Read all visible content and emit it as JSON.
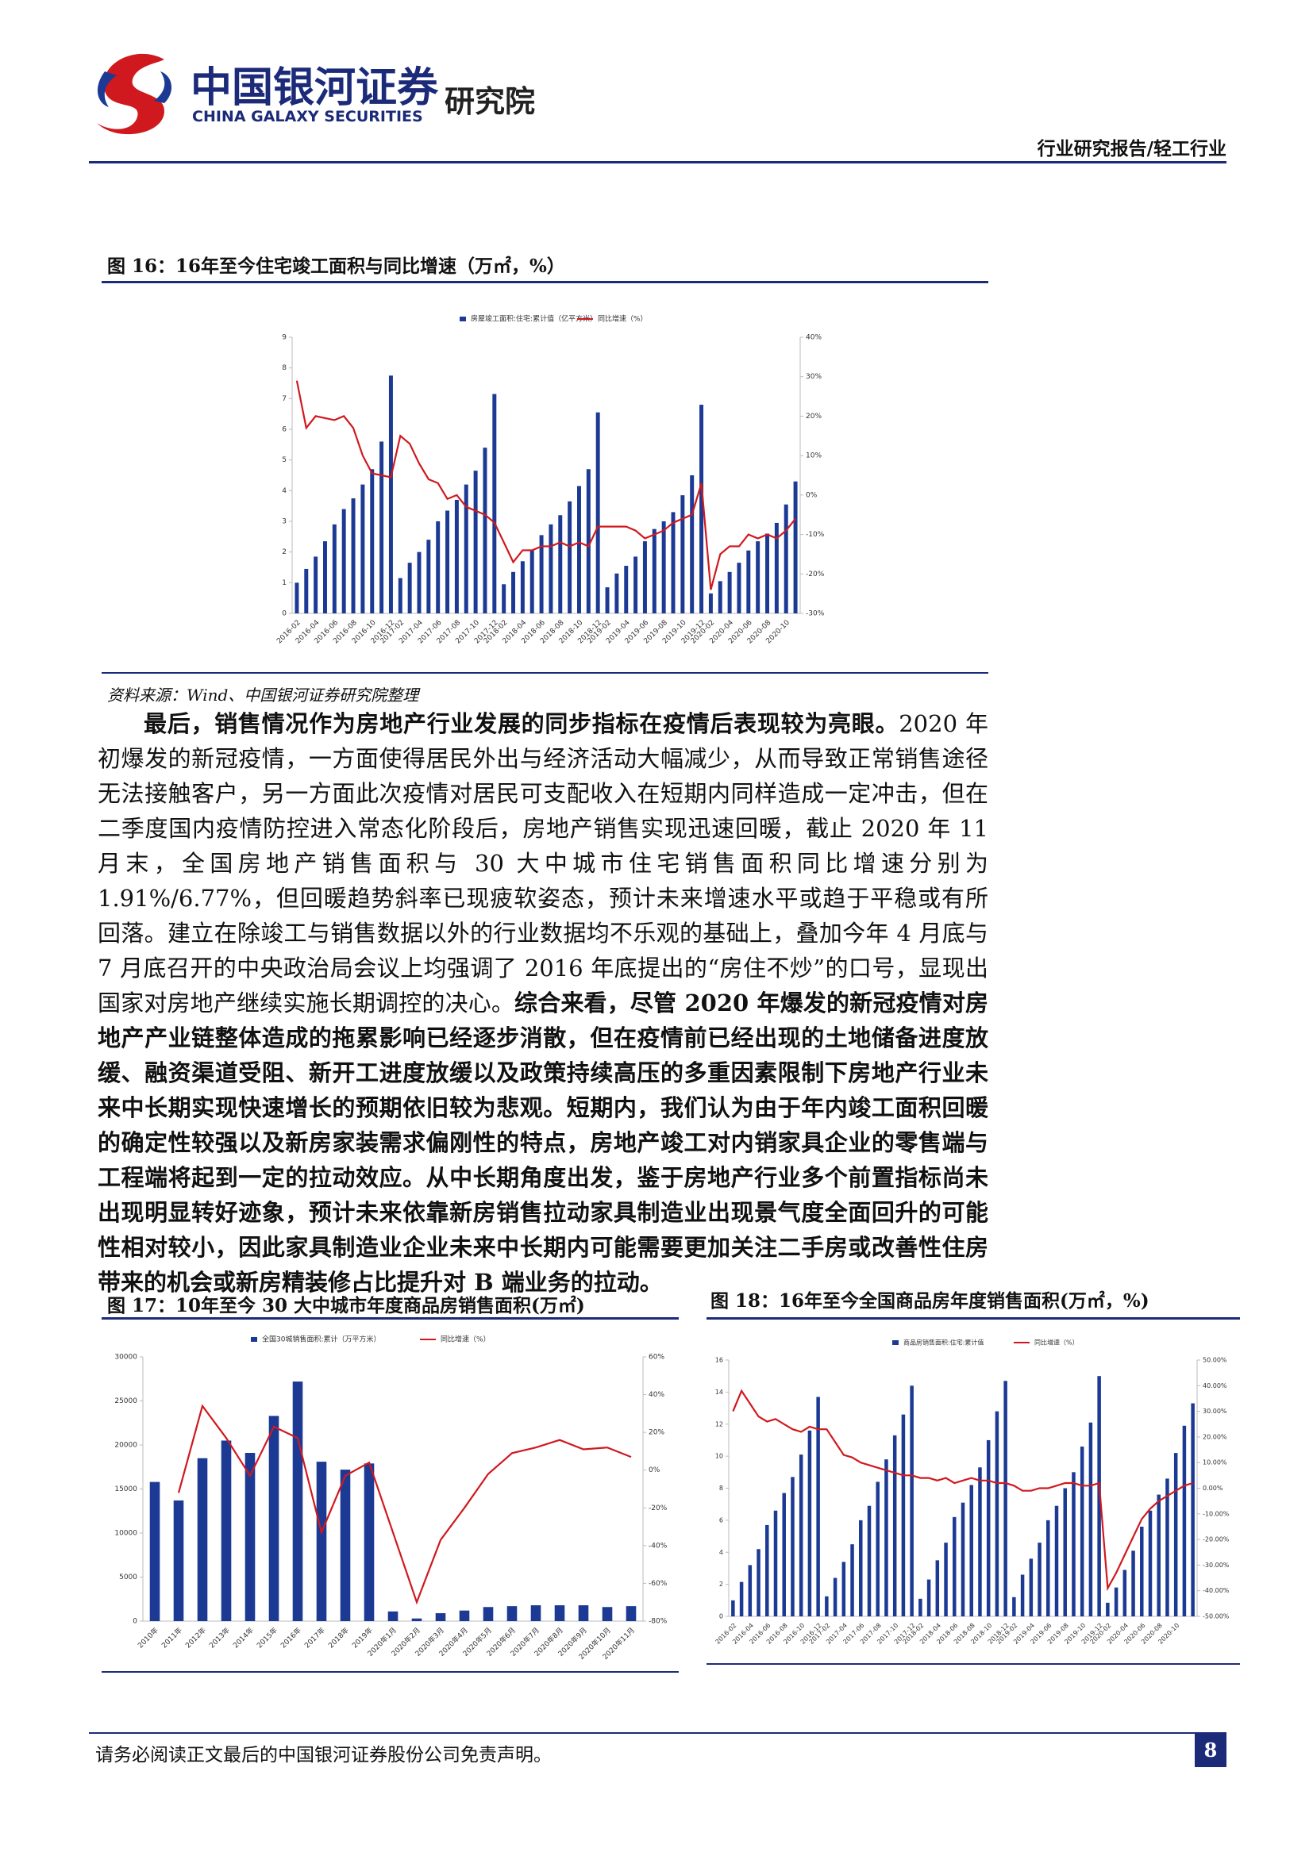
{
  "header": {
    "logo_cn": "中国银河证券",
    "logo_en": "CHINA GALAXY SECURITIES",
    "institute": "研究院",
    "category": "行业研究报告/轻工行业"
  },
  "chart_data": [
    {
      "type": "bar_line",
      "title": "图 16：16年至今住宅竣工面积与同比增速（万㎡，%）",
      "categories": [
        "2016-02",
        null,
        "2016-04",
        null,
        "2016-06",
        null,
        "2016-08",
        null,
        "2016-10",
        null,
        "2016-12",
        "2017-02",
        null,
        "2017-04",
        null,
        "2017-06",
        null,
        "2017-08",
        null,
        "2017-10",
        null,
        "2017-12",
        "2018-02",
        null,
        "2018-04",
        null,
        "2018-06",
        null,
        "2018-08",
        null,
        "2018-10",
        null,
        "2018-12",
        "2019-02",
        null,
        "2019-04",
        null,
        "2019-06",
        null,
        "2019-08",
        null,
        "2019-10",
        null,
        "2019-12",
        "2020-02",
        null,
        "2020-04",
        null,
        "2020-06",
        null,
        "2020-08",
        null,
        "2020-10",
        null
      ],
      "series": [
        {
          "name": "房屋竣工面积:住宅:累计值（亿平方米）",
          "color": "#1c3a94",
          "kind": "bar",
          "values": [
            1.0,
            1.45,
            1.85,
            2.35,
            2.9,
            3.4,
            3.75,
            4.2,
            4.7,
            5.6,
            7.75,
            1.15,
            1.65,
            2.0,
            2.4,
            3.0,
            3.35,
            3.7,
            4.2,
            4.65,
            5.4,
            7.15,
            0.95,
            1.35,
            1.7,
            2.05,
            2.55,
            2.9,
            3.2,
            3.65,
            4.15,
            4.7,
            6.55,
            0.85,
            1.3,
            1.55,
            1.85,
            2.35,
            2.75,
            3.0,
            3.3,
            3.85,
            4.5,
            6.8,
            0.65,
            1.05,
            1.35,
            1.65,
            2.05,
            2.35,
            2.6,
            2.95,
            3.55,
            4.3
          ]
        },
        {
          "name": "同比增速（%）",
          "color": "#d0191e",
          "kind": "line",
          "axis": "y2",
          "values": [
            29,
            17,
            20,
            19.5,
            19,
            20,
            17,
            10,
            5.5,
            5,
            4.5,
            15,
            13,
            8,
            4,
            3,
            -1,
            0,
            -3,
            -4,
            -5,
            -7,
            -12,
            -17,
            -14,
            -14,
            -13,
            -13,
            -12,
            -13,
            -12,
            -13,
            -8,
            -8,
            -8,
            -8,
            -9,
            -11,
            -10,
            -9,
            -7,
            -6,
            -5,
            3,
            -24,
            -15,
            -13,
            -13,
            -10,
            -11,
            -10,
            -11,
            -9,
            -6
          ]
        }
      ],
      "ylim": [
        0,
        9
      ],
      "yticks": [
        0,
        1,
        2,
        3,
        4,
        5,
        6,
        7,
        8,
        9
      ],
      "y2lim": [
        -30,
        40
      ],
      "y2ticks": [
        {
          "value": 40,
          "label": "40%"
        },
        {
          "value": 30,
          "label": "30%"
        },
        {
          "value": 20,
          "label": "20%"
        },
        {
          "value": 10,
          "label": "10%"
        },
        {
          "value": 0,
          "label": "0%"
        },
        {
          "value": -10,
          "label": "-10%"
        },
        {
          "value": -20,
          "label": "-20%"
        },
        {
          "value": -30,
          "label": "-30%"
        }
      ],
      "source": "资料来源：Wind、中国银河证券研究院整理"
    },
    {
      "type": "bar_line",
      "title": "图 17：10年至今 30 大中城市年度商品房销售面积(万㎡)",
      "categories": [
        "2010年",
        "2011年",
        "2012年",
        "2013年",
        "2014年",
        "2015年",
        "2016年",
        "2017年",
        "2018年",
        "2019年",
        "2020年1月",
        "2020年2月",
        "2020年3月",
        "2020年4月",
        "2020年5月",
        "2020年6月",
        "2020年7月",
        "2020年8月",
        "2020年9月",
        "2020年10月",
        "2020年11月"
      ],
      "series": [
        {
          "name": "全国30城销售面积:累计（万平方米）",
          "color": "#1c3a94",
          "kind": "bar",
          "values": [
            15800,
            13700,
            18500,
            20500,
            19100,
            23300,
            27200,
            18100,
            17200,
            17900,
            1100,
            300,
            900,
            1200,
            1600,
            1700,
            1800,
            1800,
            1800,
            1600,
            1700
          ]
        },
        {
          "name": "同比增速（%）",
          "color": "#d0191e",
          "kind": "line",
          "axis": "y2",
          "values": [
            null,
            -12,
            34,
            17,
            -3,
            23,
            17,
            -33,
            -3,
            4,
            -33,
            -70,
            -37,
            -20,
            -2,
            9,
            12,
            16,
            11,
            12,
            7
          ]
        }
      ],
      "ylim": [
        0,
        30000
      ],
      "yticks": [
        0,
        5000,
        10000,
        15000,
        20000,
        25000,
        30000
      ],
      "y2lim": [
        -80,
        60
      ],
      "y2ticks": [
        {
          "value": 60,
          "label": "60%"
        },
        {
          "value": 40,
          "label": "40%"
        },
        {
          "value": 20,
          "label": "20%"
        },
        {
          "value": 0,
          "label": "0%"
        },
        {
          "value": -20,
          "label": "-20%"
        },
        {
          "value": -40,
          "label": "-40%"
        },
        {
          "value": -60,
          "label": "-60%"
        },
        {
          "value": -80,
          "label": "-80%"
        }
      ]
    },
    {
      "type": "bar_line",
      "title": "图 18：16年至今全国商品房年度销售面积(万㎡，%)",
      "categories": [
        "2016-02",
        null,
        "2016-04",
        null,
        "2016-06",
        null,
        "2016-08",
        null,
        "2016-10",
        null,
        "2016-12",
        "2017-02",
        null,
        "2017-04",
        null,
        "2017-06",
        null,
        "2017-08",
        null,
        "2017-10",
        null,
        "2017-12",
        "2018-02",
        null,
        "2018-04",
        null,
        "2018-06",
        null,
        "2018-08",
        null,
        "2018-10",
        null,
        "2018-12",
        "2019-02",
        null,
        "2019-04",
        null,
        "2019-06",
        null,
        "2019-08",
        null,
        "2019-10",
        null,
        "2019-12",
        "2020-02",
        null,
        "2020-04",
        null,
        "2020-06",
        null,
        "2020-08",
        null,
        "2020-10",
        null,
        null
      ],
      "series": [
        {
          "name": "商品房销售面积:住宅:累计值",
          "color": "#1c3a94",
          "kind": "bar",
          "values": [
            1.0,
            2.15,
            3.2,
            4.2,
            5.7,
            6.6,
            7.7,
            8.7,
            10.1,
            11.6,
            13.7,
            1.25,
            2.4,
            3.4,
            4.5,
            6.0,
            6.9,
            8.4,
            9.8,
            11.3,
            12.6,
            14.4,
            1.1,
            2.3,
            3.5,
            4.6,
            6.2,
            7.1,
            8.2,
            9.3,
            11.0,
            12.8,
            14.7,
            1.2,
            2.6,
            3.6,
            4.6,
            6.0,
            6.9,
            8.0,
            9.0,
            10.6,
            12.1,
            15.0,
            0.85,
            1.8,
            2.9,
            4.1,
            5.6,
            6.6,
            7.6,
            8.6,
            10.2,
            11.9,
            13.3
          ]
        },
        {
          "name": "同比增速（%）",
          "color": "#d0191e",
          "kind": "line",
          "axis": "y2",
          "values": [
            30,
            38,
            33,
            28,
            26,
            27,
            25,
            23,
            22,
            24,
            23,
            23,
            18,
            13,
            12,
            10,
            9,
            8,
            7,
            6,
            5,
            5,
            4,
            4,
            3,
            4,
            2,
            3,
            4,
            3,
            3,
            2,
            2,
            1,
            -1,
            -1,
            0,
            0,
            1,
            2,
            2,
            1,
            1,
            2,
            -39,
            -33,
            -26,
            -19,
            -12,
            -8,
            -5,
            -3,
            -1,
            1,
            2
          ]
        }
      ],
      "ylim": [
        0,
        16
      ],
      "yticks": [
        0,
        2,
        4,
        6,
        8,
        10,
        12,
        14,
        16
      ],
      "y2lim": [
        -50,
        50
      ],
      "y2ticks": [
        {
          "value": 50,
          "label": "50.00%"
        },
        {
          "value": 40,
          "label": "40.00%"
        },
        {
          "value": 30,
          "label": "30.00%"
        },
        {
          "value": 20,
          "label": "20.00%"
        },
        {
          "value": 10,
          "label": "10.00%"
        },
        {
          "value": 0,
          "label": "0.00%"
        },
        {
          "value": -10,
          "label": "-10.00%"
        },
        {
          "value": -20,
          "label": "-20.00%"
        },
        {
          "value": -30,
          "label": "-30.00%"
        },
        {
          "value": -40,
          "label": "-40.00%"
        },
        {
          "value": -50,
          "label": "-50.00%"
        }
      ]
    }
  ],
  "body": {
    "segments": [
      {
        "text": "最后，销售情况作为房地产行业发展的同步指标在疫情后表现较为亮眼。",
        "bold": true
      },
      {
        "text": "2020 年初爆发的新冠疫情，一方面使得居民外出与经济活动大幅减少，从而导致正常销售途径无法接触客户，另一方面此次疫情对居民可支配收入在短期内同样造成一定冲击，但在二季度国内疫情防控进入常态化阶段后，房地产销售实现迅速回暖，截止 2020 年 11 月末，全国房地产销售面积与 30 大中城市住宅销售面积同比增速分别为 1.91%/6.77%，但回暖趋势斜率已现疲软姿态，预计未来增速水平或趋于平稳或有所回落。建立在除竣工与销售数据以外的行业数据均不乐观的基础上，叠加今年 4 月底与 7 月底召开的中央政治局会议上均强调了 2016 年底提出的“房住不炒”的口号，显现出国家对房地产继续实施长期调控的决心。",
        "bold": false
      },
      {
        "text": "综合来看，尽管 2020 年爆发的新冠疫情对房地产产业链整体造成的拖累影响已经逐步消散，但在疫情前已经出现的土地储备进度放缓、融资渠道受阻、新开工进度放缓以及政策持续高压的多重因素限制下房地产行业未来中长期实现快速增长的预期依旧较为悲观。短期内，我们认为由于年内竣工面积回暖的确定性较强以及新房家装需求偏刚性的特点，房地产竣工对内销家具企业的零售端与工程端将起到一定的拉动效应。从中长期角度出发，鉴于房地产行业多个前置指标尚未出现明显转好迹象，预计未来依靠新房销售拉动家具制造业出现景气度全面回升的可能性相对较小，因此家具制造业企业未来中长期内可能需要更加关注二手房或改善性住房带来的机会或新房精装修占比提升对 B 端业务的拉动。",
        "bold": true
      }
    ]
  },
  "footer": {
    "disclaimer": "请务必阅读正文最后的中国银河证券股份公司免责声明。",
    "page": "8"
  }
}
